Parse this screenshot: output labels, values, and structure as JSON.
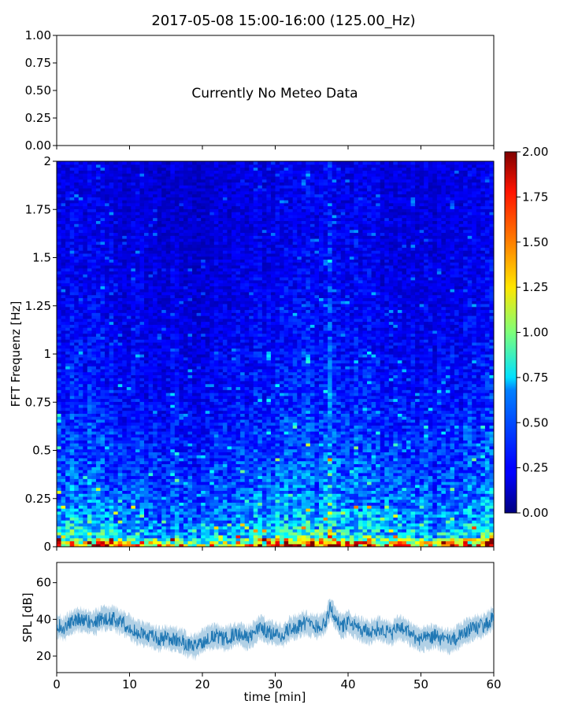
{
  "figure": {
    "title": "2017-05-08 15:00-16:00 (125.00_Hz)"
  },
  "chart_data": [
    {
      "panel": "meteo",
      "type": "text",
      "message": "Currently No Meteo Data",
      "ylim": [
        0,
        1
      ],
      "yticks": [
        0.0,
        0.25,
        0.5,
        0.75,
        1.0
      ],
      "ytick_labels": [
        "0.00",
        "0.25",
        "0.50",
        "0.75",
        "1.00"
      ],
      "xlim": [
        0,
        60
      ],
      "xtick_labels_shown": false
    },
    {
      "panel": "spectrogram",
      "type": "heatmap",
      "ylabel": "FFT Frequenz [Hz]",
      "ylim": [
        0,
        2
      ],
      "yticks": [
        0,
        0.25,
        0.5,
        0.75,
        1,
        1.25,
        1.5,
        1.75,
        2
      ],
      "ytick_labels": [
        "0",
        "0.25",
        "0.5",
        "0.75",
        "1",
        "1.25",
        "1.5",
        "1.75",
        "2"
      ],
      "xlim": [
        0,
        60
      ],
      "colormap": "jet",
      "colorbar": {
        "range": [
          0.0,
          2.0
        ],
        "ticks": [
          0.0,
          0.25,
          0.5,
          0.75,
          1.0,
          1.25,
          1.5,
          1.75,
          2.0
        ],
        "tick_labels": [
          "0.00",
          "0.25",
          "0.50",
          "0.75",
          "1.00",
          "1.25",
          "1.50",
          "1.75",
          "2.00"
        ]
      },
      "n_time_bins": 100,
      "n_freq_bins": 130,
      "freq_profile": {
        "freq": [
          0.0,
          0.02,
          0.05,
          0.1,
          0.2,
          0.3,
          0.5,
          0.75,
          1.0,
          1.25,
          1.5,
          1.75,
          2.0
        ],
        "level": [
          1.7,
          1.3,
          0.8,
          0.62,
          0.52,
          0.45,
          0.37,
          0.3,
          0.26,
          0.23,
          0.21,
          0.2,
          0.2
        ]
      },
      "time_activity": {
        "time_min": [
          0,
          5,
          10,
          15,
          20,
          25,
          30,
          33,
          36,
          37.5,
          39,
          42,
          45,
          50,
          55,
          58,
          60
        ],
        "gain": [
          1.0,
          1.0,
          0.9,
          0.8,
          0.78,
          0.9,
          1.05,
          1.15,
          1.1,
          1.5,
          1.1,
          1.05,
          0.95,
          0.9,
          0.9,
          1.05,
          1.1
        ]
      }
    },
    {
      "panel": "spl",
      "type": "line",
      "ylabel": "SPL [dB]",
      "xlabel": "time [min]",
      "xlim": [
        0,
        60
      ],
      "ylim": [
        11,
        71
      ],
      "xticks": [
        0,
        10,
        20,
        30,
        40,
        50,
        60
      ],
      "xtick_labels": [
        "0",
        "10",
        "20",
        "30",
        "40",
        "50",
        "60"
      ],
      "yticks": [
        20,
        40,
        60
      ],
      "ytick_labels": [
        "20",
        "40",
        "60"
      ],
      "color": "#1f77b4",
      "series": [
        {
          "x": [
            0,
            1,
            2,
            3,
            4,
            5,
            6,
            7,
            8,
            9,
            10,
            11,
            12,
            13,
            14,
            15,
            16,
            17,
            18,
            19,
            20,
            21,
            22,
            23,
            24,
            25,
            26,
            27,
            28,
            29,
            30,
            31,
            32,
            33,
            34,
            35,
            36,
            37,
            37.5,
            38,
            39,
            40,
            41,
            42,
            43,
            44,
            45,
            46,
            47,
            48,
            49,
            50,
            51,
            52,
            53,
            54,
            55,
            56,
            57,
            58,
            59,
            60
          ],
          "y": [
            37,
            35,
            38,
            40,
            39,
            38,
            40,
            41,
            40,
            38,
            36,
            33,
            32,
            31,
            29,
            30,
            29,
            29,
            26,
            25,
            28,
            30,
            31,
            29,
            31,
            32,
            30,
            32,
            36,
            33,
            32,
            31,
            35,
            36,
            38,
            37,
            36,
            39,
            46,
            43,
            36,
            38,
            36,
            34,
            33,
            35,
            34,
            32,
            36,
            34,
            31,
            29,
            30,
            31,
            29,
            28,
            30,
            33,
            35,
            36,
            37,
            42
          ],
          "spread": 4
        }
      ]
    }
  ]
}
